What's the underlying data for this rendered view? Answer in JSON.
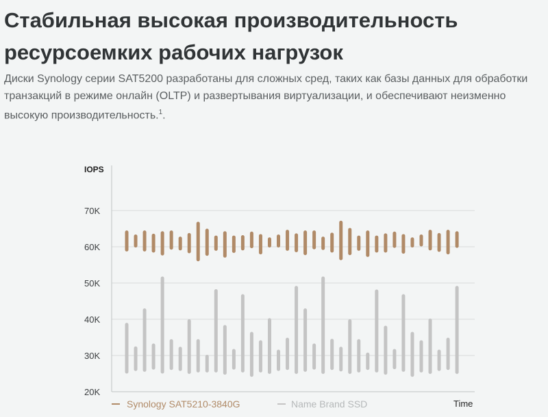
{
  "header": {
    "title": "Стабильная высокая производительность ресурсоемких рабочих нагрузок",
    "description": "Диски Synology серии SAT5200 разработаны для сложных сред, таких как базы данных для обработки транзакций в режиме онлайн (OLTP) и развертывания виртуализации, и обеспечивают неизменно высокую производительность.",
    "footnote": "1",
    "description_end": "."
  },
  "chart_data": {
    "type": "bar",
    "subtype": "floating-range",
    "ylabel": "IOPS",
    "xlabel": "Time",
    "ylim": [
      20000,
      75000
    ],
    "yticks": [
      20000,
      30000,
      40000,
      50000,
      60000,
      70000
    ],
    "ytick_labels": [
      "20K",
      "30K",
      "40K",
      "50K",
      "60K",
      "70K"
    ],
    "grid": true,
    "legend": "bottom",
    "series": [
      {
        "name": "Synology SAT5210-3840G",
        "color": "#b08a67",
        "low": [
          58.7,
          59.8,
          58.7,
          58.4,
          57.6,
          59.2,
          59.0,
          58.2,
          56.0,
          57.5,
          58.9,
          57.0,
          58.3,
          59.0,
          59.6,
          57.9,
          59.8,
          59.8,
          58.9,
          58.5,
          57.7,
          59.3,
          59.1,
          58.4,
          56.3,
          57.7,
          58.9,
          57.2,
          58.4,
          58.4,
          59.7,
          58.1,
          59.8,
          60.1,
          59.0,
          58.6,
          57.9,
          59.7
        ],
        "high": [
          64.5,
          63.4,
          64.5,
          63.6,
          64.3,
          64.5,
          62.8,
          63.8,
          66.9,
          65.0,
          63.1,
          64.3,
          63.1,
          63.2,
          64.2,
          63.5,
          62.6,
          63.4,
          64.7,
          63.7,
          64.5,
          64.5,
          62.8,
          63.9,
          67.2,
          65.2,
          63.1,
          64.5,
          63.1,
          63.7,
          64.2,
          63.5,
          62.6,
          63.4,
          64.7,
          63.8,
          64.7,
          64.3
        ],
        "unit": "K IOPS"
      },
      {
        "name": "Name Brand SSD",
        "color": "#c4c4c4",
        "low": [
          25.0,
          25.7,
          25.5,
          26.1,
          25.0,
          26.0,
          25.7,
          24.9,
          25.3,
          25.3,
          25.3,
          24.7,
          26.1,
          25.3,
          24.1,
          25.3,
          24.9,
          25.7,
          26.0,
          24.9,
          25.5,
          26.1,
          24.9,
          26.0,
          25.6,
          24.9,
          25.3,
          26.0,
          25.3,
          24.7,
          26.2,
          25.5,
          24.1,
          25.3,
          24.9,
          25.7,
          26.0,
          24.9
        ],
        "high": [
          39.0,
          32.5,
          43.0,
          33.3,
          51.8,
          34.5,
          32.4,
          40.0,
          34.5,
          30.2,
          48.3,
          38.4,
          31.8,
          46.9,
          36.5,
          34.2,
          40.3,
          31.6,
          34.9,
          49.2,
          43.0,
          33.3,
          51.8,
          34.6,
          32.4,
          40.0,
          34.5,
          30.8,
          48.2,
          38.2,
          31.8,
          46.9,
          36.5,
          34.2,
          40.2,
          31.6,
          34.9,
          49.2
        ],
        "unit": "K IOPS"
      }
    ]
  }
}
